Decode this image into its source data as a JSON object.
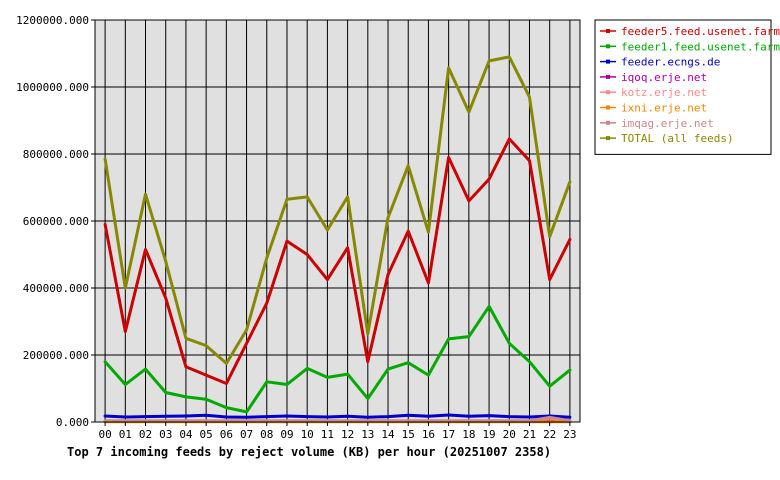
{
  "chart_data": {
    "type": "line",
    "title": "Top 7 incoming feeds by reject volume (KB) per hour (20251007 2358)",
    "categories": [
      "00",
      "01",
      "02",
      "03",
      "04",
      "05",
      "06",
      "07",
      "08",
      "09",
      "10",
      "11",
      "12",
      "13",
      "14",
      "15",
      "16",
      "17",
      "18",
      "19",
      "20",
      "21",
      "22",
      "23"
    ],
    "y_ticks": [
      "0.000",
      "200000.000",
      "400000.000",
      "600000.000",
      "800000.000",
      "1000000.000",
      "1200000.000"
    ],
    "ylim": [
      0,
      1200000
    ],
    "grid": true,
    "legend_position": "right",
    "series": [
      {
        "name": "feeder5.feed.usenet.farm",
        "color": "#cc0000",
        "values": [
          590000,
          270000,
          515000,
          370000,
          165000,
          140000,
          115000,
          235000,
          355000,
          540000,
          500000,
          425000,
          520000,
          180000,
          440000,
          570000,
          415000,
          790000,
          660000,
          725000,
          845000,
          780000,
          425000,
          545000
        ]
      },
      {
        "name": "feeder1.feed.usenet.farm",
        "color": "#00aa00",
        "values": [
          180000,
          112000,
          158000,
          88000,
          75000,
          68000,
          43000,
          30000,
          120000,
          112000,
          160000,
          133000,
          143000,
          70000,
          158000,
          177000,
          140000,
          248000,
          255000,
          345000,
          235000,
          180000,
          107000,
          155000
        ]
      },
      {
        "name": "feeder.ecngs.de",
        "color": "#0000cc",
        "values": [
          18000,
          15000,
          16000,
          17000,
          18000,
          20000,
          15000,
          14000,
          16000,
          18000,
          16000,
          15000,
          17000,
          14000,
          16000,
          20000,
          17000,
          21000,
          17000,
          19000,
          16000,
          15000,
          18000,
          14000
        ]
      },
      {
        "name": "iqoq.erje.net",
        "color": "#aa00aa",
        "values": [
          2000,
          2000,
          2000,
          2000,
          2000,
          2000,
          2000,
          2000,
          2000,
          2000,
          2000,
          2000,
          2000,
          2000,
          2000,
          2000,
          2000,
          2000,
          2000,
          2000,
          2000,
          2000,
          2000,
          2000
        ]
      },
      {
        "name": "kotz.erje.net",
        "color": "#ff8888",
        "values": [
          3000,
          3000,
          3000,
          3000,
          3000,
          3000,
          3000,
          3000,
          3000,
          3000,
          3000,
          3000,
          3000,
          3000,
          3000,
          3000,
          3000,
          3000,
          3000,
          3000,
          3000,
          3000,
          12000,
          3000
        ]
      },
      {
        "name": "ixni.erje.net",
        "color": "#ee8800",
        "values": [
          1000,
          1000,
          1000,
          1000,
          1000,
          1000,
          1000,
          1000,
          1000,
          1000,
          1000,
          1000,
          1000,
          1000,
          1000,
          1000,
          1000,
          1000,
          1000,
          1000,
          1000,
          1000,
          1000,
          1000
        ]
      },
      {
        "name": "imqag.erje.net",
        "color": "#cc8888",
        "values": [
          4000,
          4000,
          4000,
          4000,
          4000,
          4000,
          4000,
          4000,
          4000,
          4000,
          4000,
          4000,
          4000,
          4000,
          4000,
          4000,
          4000,
          4000,
          4000,
          4000,
          4000,
          4000,
          14000,
          4000
        ]
      },
      {
        "name": "TOTAL (all feeds)",
        "color": "#888800",
        "values": [
          785000,
          400000,
          680000,
          480000,
          250000,
          228000,
          175000,
          275000,
          490000,
          665000,
          672000,
          573000,
          672000,
          263000,
          610000,
          765000,
          567000,
          1057000,
          925000,
          1078000,
          1090000,
          970000,
          553000,
          717000
        ]
      }
    ]
  }
}
